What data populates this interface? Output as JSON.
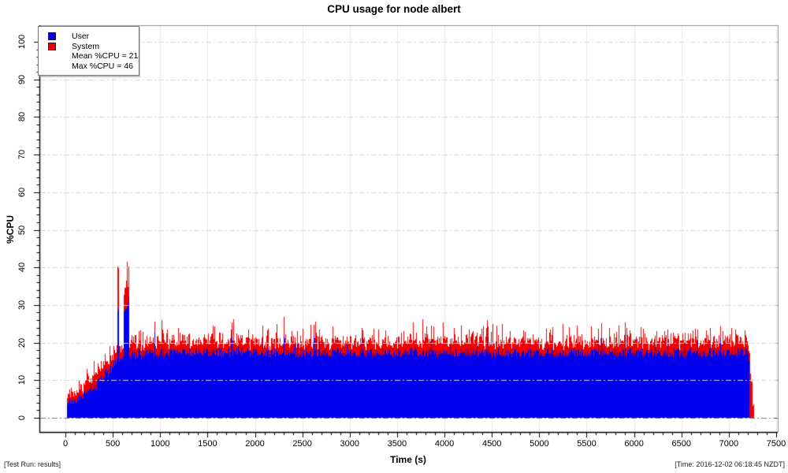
{
  "chart_data": {
    "type": "area",
    "subtype": "stacked-filled-timeseries",
    "title": "CPU usage for node albert",
    "xlabel": "Time (s)",
    "ylabel": "%CPU",
    "xlim": [
      -280,
      7540
    ],
    "ylim": [
      -4,
      104.5
    ],
    "x_ticks": [
      0,
      500,
      1000,
      1500,
      2000,
      2500,
      3000,
      3500,
      4000,
      4500,
      5000,
      5500,
      6000,
      6500,
      7000,
      7500
    ],
    "x_minor_step": 100,
    "y_ticks": [
      0,
      10,
      20,
      30,
      40,
      50,
      60,
      70,
      80,
      90,
      100
    ],
    "y_minor_step": 2,
    "grid": {
      "vertical": "major",
      "horizontal": "major",
      "style": "dash-dot",
      "horizontal_drawn_over_data": true
    },
    "legend": {
      "position": "top-left",
      "items": [
        {
          "label": "User",
          "color": "#0000ee"
        },
        {
          "label": "System",
          "color": "#ee0000"
        }
      ],
      "annotations": [
        "Mean %CPU = 21",
        "Max %CPU = 46"
      ]
    },
    "stats": {
      "mean_pct_cpu": 21,
      "max_pct_cpu": 46
    },
    "series_profile": {
      "description": "Stacked %CPU vs time (s). Segments: [t0,t1,user0,user1,sys0,sys1,userNoise,sysNoise,redSpikeProb,redSpikeAmp,blueSpikeProb]. User ramps 4->17 over first 900s, thin burst to ~41 near t=550, wide burst ~38-41 near t=640, steady ~17 user + ~3 system (total ~20-21, spikes to 25-27) until ~7210s, then ramp down / red-only tail ending ~7260s.",
      "segments": [
        [
          15,
          120,
          4.2,
          4.8,
          2.4,
          2.6,
          1.0,
          1.3,
          0.1,
          2.2,
          0.02
        ],
        [
          120,
          300,
          5.0,
          8.5,
          2.7,
          3.0,
          1.3,
          1.4,
          0.12,
          2.6,
          0.02
        ],
        [
          300,
          480,
          8.5,
          13.0,
          3.0,
          3.2,
          1.4,
          1.5,
          0.12,
          2.8,
          0.03
        ],
        [
          480,
          545,
          13.0,
          15.0,
          3.2,
          3.4,
          1.4,
          1.5,
          0.12,
          3.0,
          0.03
        ],
        [
          545,
          560,
          29.0,
          30.0,
          11.0,
          11.0,
          1.5,
          1.5,
          0.0,
          0.0,
          0.0
        ],
        [
          560,
          612,
          15.0,
          15.5,
          3.0,
          3.0,
          1.2,
          1.3,
          0.1,
          2.8,
          0.02
        ],
        [
          612,
          666,
          29.0,
          31.0,
          6.5,
          7.0,
          2.6,
          2.6,
          0.15,
          2.5,
          0.05
        ],
        [
          666,
          830,
          16.5,
          17.0,
          3.8,
          3.5,
          1.4,
          1.6,
          0.25,
          3.8,
          0.03
        ],
        [
          830,
          7205,
          17.3,
          17.3,
          2.9,
          2.9,
          1.2,
          1.2,
          0.16,
          3.4,
          0.025
        ],
        [
          7205,
          7212,
          17.0,
          15.0,
          3.0,
          3.5,
          1.0,
          1.2,
          0.05,
          2.0,
          0.0
        ],
        [
          7212,
          7248,
          0.0,
          0.0,
          18.0,
          6.0,
          0.0,
          2.0,
          0.0,
          0.0,
          0.0
        ],
        [
          7248,
          7262,
          0.0,
          0.0,
          4.0,
          3.0,
          0.0,
          0.6,
          0.0,
          0.0,
          0.0
        ]
      ]
    },
    "colors": {
      "user": "#0000ee",
      "system": "#ee0000",
      "grid": "#d6d6d6",
      "zero_line": "rgba(0,0,40,0.55)",
      "axis": "#000000",
      "box": "#909090",
      "background": "#ffffff"
    }
  },
  "footer": {
    "left": "[Test Run: results]",
    "right": "[Time: 2016-12-02 06:18:45 NZDT]"
  }
}
